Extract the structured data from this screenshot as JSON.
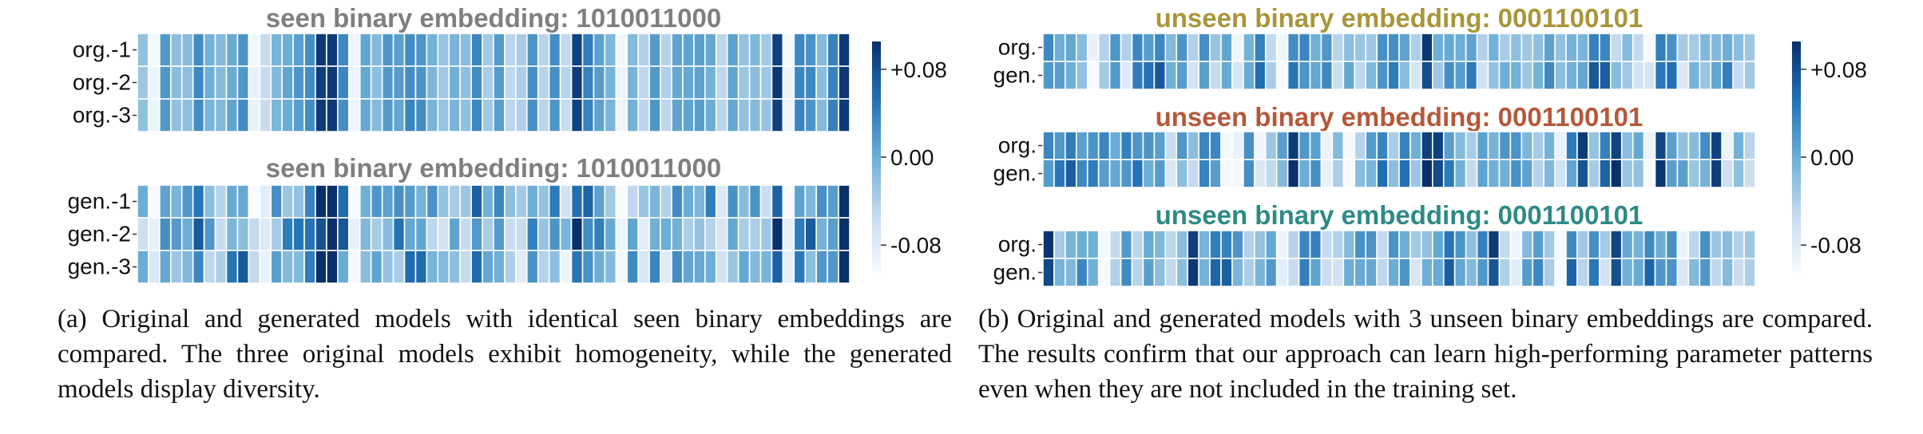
{
  "panel_a": {
    "heatmaps": [
      {
        "title": "seen binary embedding: 1010011000",
        "title_color": "#7f7f7f",
        "rows": [
          "org.-1",
          "org.-2",
          "org.-3"
        ],
        "seed": 11,
        "variant": "org"
      },
      {
        "title": "seen binary embedding: 1010011000",
        "title_color": "#7f7f7f",
        "rows": [
          "gen.-1",
          "gen.-2",
          "gen.-3"
        ],
        "seed": 11,
        "variant": "gen"
      }
    ],
    "colorbar": {
      "ticks": [
        "+0.08",
        "0.00",
        "-0.08"
      ]
    }
  },
  "panel_b": {
    "heatmaps": [
      {
        "title": "unseen binary embedding: 0001100101",
        "title_color": "#a8963a",
        "rows": [
          "org.",
          "gen."
        ],
        "seed": 23,
        "variant": "pair"
      },
      {
        "title": "unseen binary embedding: 0001100101",
        "title_color": "#b5583a",
        "rows": [
          "org.",
          "gen."
        ],
        "seed": 37,
        "variant": "pair"
      },
      {
        "title": "unseen binary embedding: 0001100101",
        "title_color": "#2e8a86",
        "rows": [
          "org.",
          "gen."
        ],
        "seed": 53,
        "variant": "pair"
      }
    ],
    "colorbar": {
      "ticks": [
        "+0.08",
        "0.00",
        "-0.08"
      ]
    }
  },
  "captions": {
    "a": "(a) Original and generated models with identical seen binary embeddings are compared.  The three original models exhibit homogeneity, while the generated models display diversity.",
    "b": "(b) Original and generated models with 3 unseen binary embeddings are compared. The results confirm that our approach can learn high-performing parameter patterns even when they are not included in the training set."
  },
  "chart_data": [
    {
      "type": "heatmap",
      "title": "seen binary embedding: 1010011000",
      "rows": [
        "org.-1",
        "org.-2",
        "org.-3"
      ],
      "columns": 64,
      "value_range": [
        -0.08,
        0.08
      ]
    },
    {
      "type": "heatmap",
      "title": "seen binary embedding: 1010011000",
      "rows": [
        "gen.-1",
        "gen.-2",
        "gen.-3"
      ],
      "columns": 64,
      "value_range": [
        -0.08,
        0.08
      ]
    },
    {
      "type": "heatmap",
      "title": "unseen binary embedding: 0001100101",
      "rows": [
        "org.",
        "gen."
      ],
      "columns": 64,
      "value_range": [
        -0.08,
        0.08
      ]
    },
    {
      "type": "heatmap",
      "title": "unseen binary embedding: 0001100101",
      "rows": [
        "org.",
        "gen."
      ],
      "columns": 64,
      "value_range": [
        -0.08,
        0.08
      ]
    },
    {
      "type": "heatmap",
      "title": "unseen binary embedding: 0001100101",
      "rows": [
        "org.",
        "gen."
      ],
      "columns": 64,
      "value_range": [
        -0.08,
        0.08
      ]
    }
  ]
}
